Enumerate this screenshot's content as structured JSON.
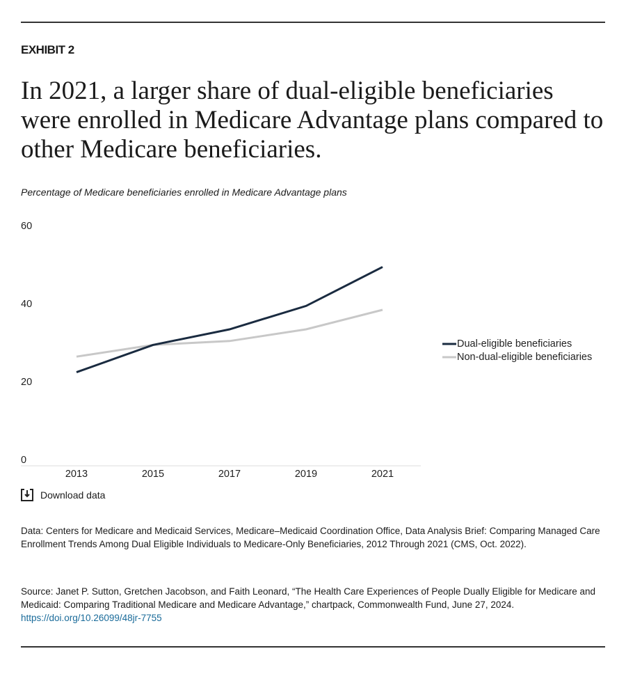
{
  "header": {
    "label": "EXHIBIT 2",
    "title": "In 2021, a larger share of dual-eligible beneficiaries were enrolled in Medicare Advantage plans compared to other Medicare beneficiaries."
  },
  "chart_data": {
    "type": "line",
    "subtitle": "Percentage of Medicare beneficiaries enrolled in Medicare Advantage plans",
    "categories": [
      "2013",
      "2015",
      "2017",
      "2019",
      "2021"
    ],
    "series": [
      {
        "name": "Dual-eligible beneficiaries",
        "color": "#1a2b40",
        "values": [
          24,
          31,
          35,
          41,
          51
        ]
      },
      {
        "name": "Non-dual-eligible beneficiaries",
        "color": "#c8c8c8",
        "values": [
          28,
          31,
          32,
          35,
          40
        ]
      }
    ],
    "ylim": [
      0,
      60
    ],
    "yticks": [
      0,
      20,
      40,
      60
    ],
    "grid": false,
    "legend": "right"
  },
  "download": "Download data",
  "notes": {
    "data": "Data: Centers for Medicare and Medicaid Services, Medicare–Medicaid Coordination Office, Data Analysis Brief: Comparing Managed Care Enrollment Trends Among Dual Eligible Individuals to Medicare-Only Beneficiaries, 2012 Through 2021 (CMS, Oct. 2022).",
    "source": "Source: Janet P. Sutton, Gretchen Jacobson, and Faith Leonard, “The Health Care Experiences of People Dually Eligible for Medicare and Medicaid: Comparing Traditional Medicare and Medicare Advantage,” chartpack, Commonwealth Fund, June 27, 2024.",
    "link": "https://doi.org/10.26099/48jr-7755"
  }
}
